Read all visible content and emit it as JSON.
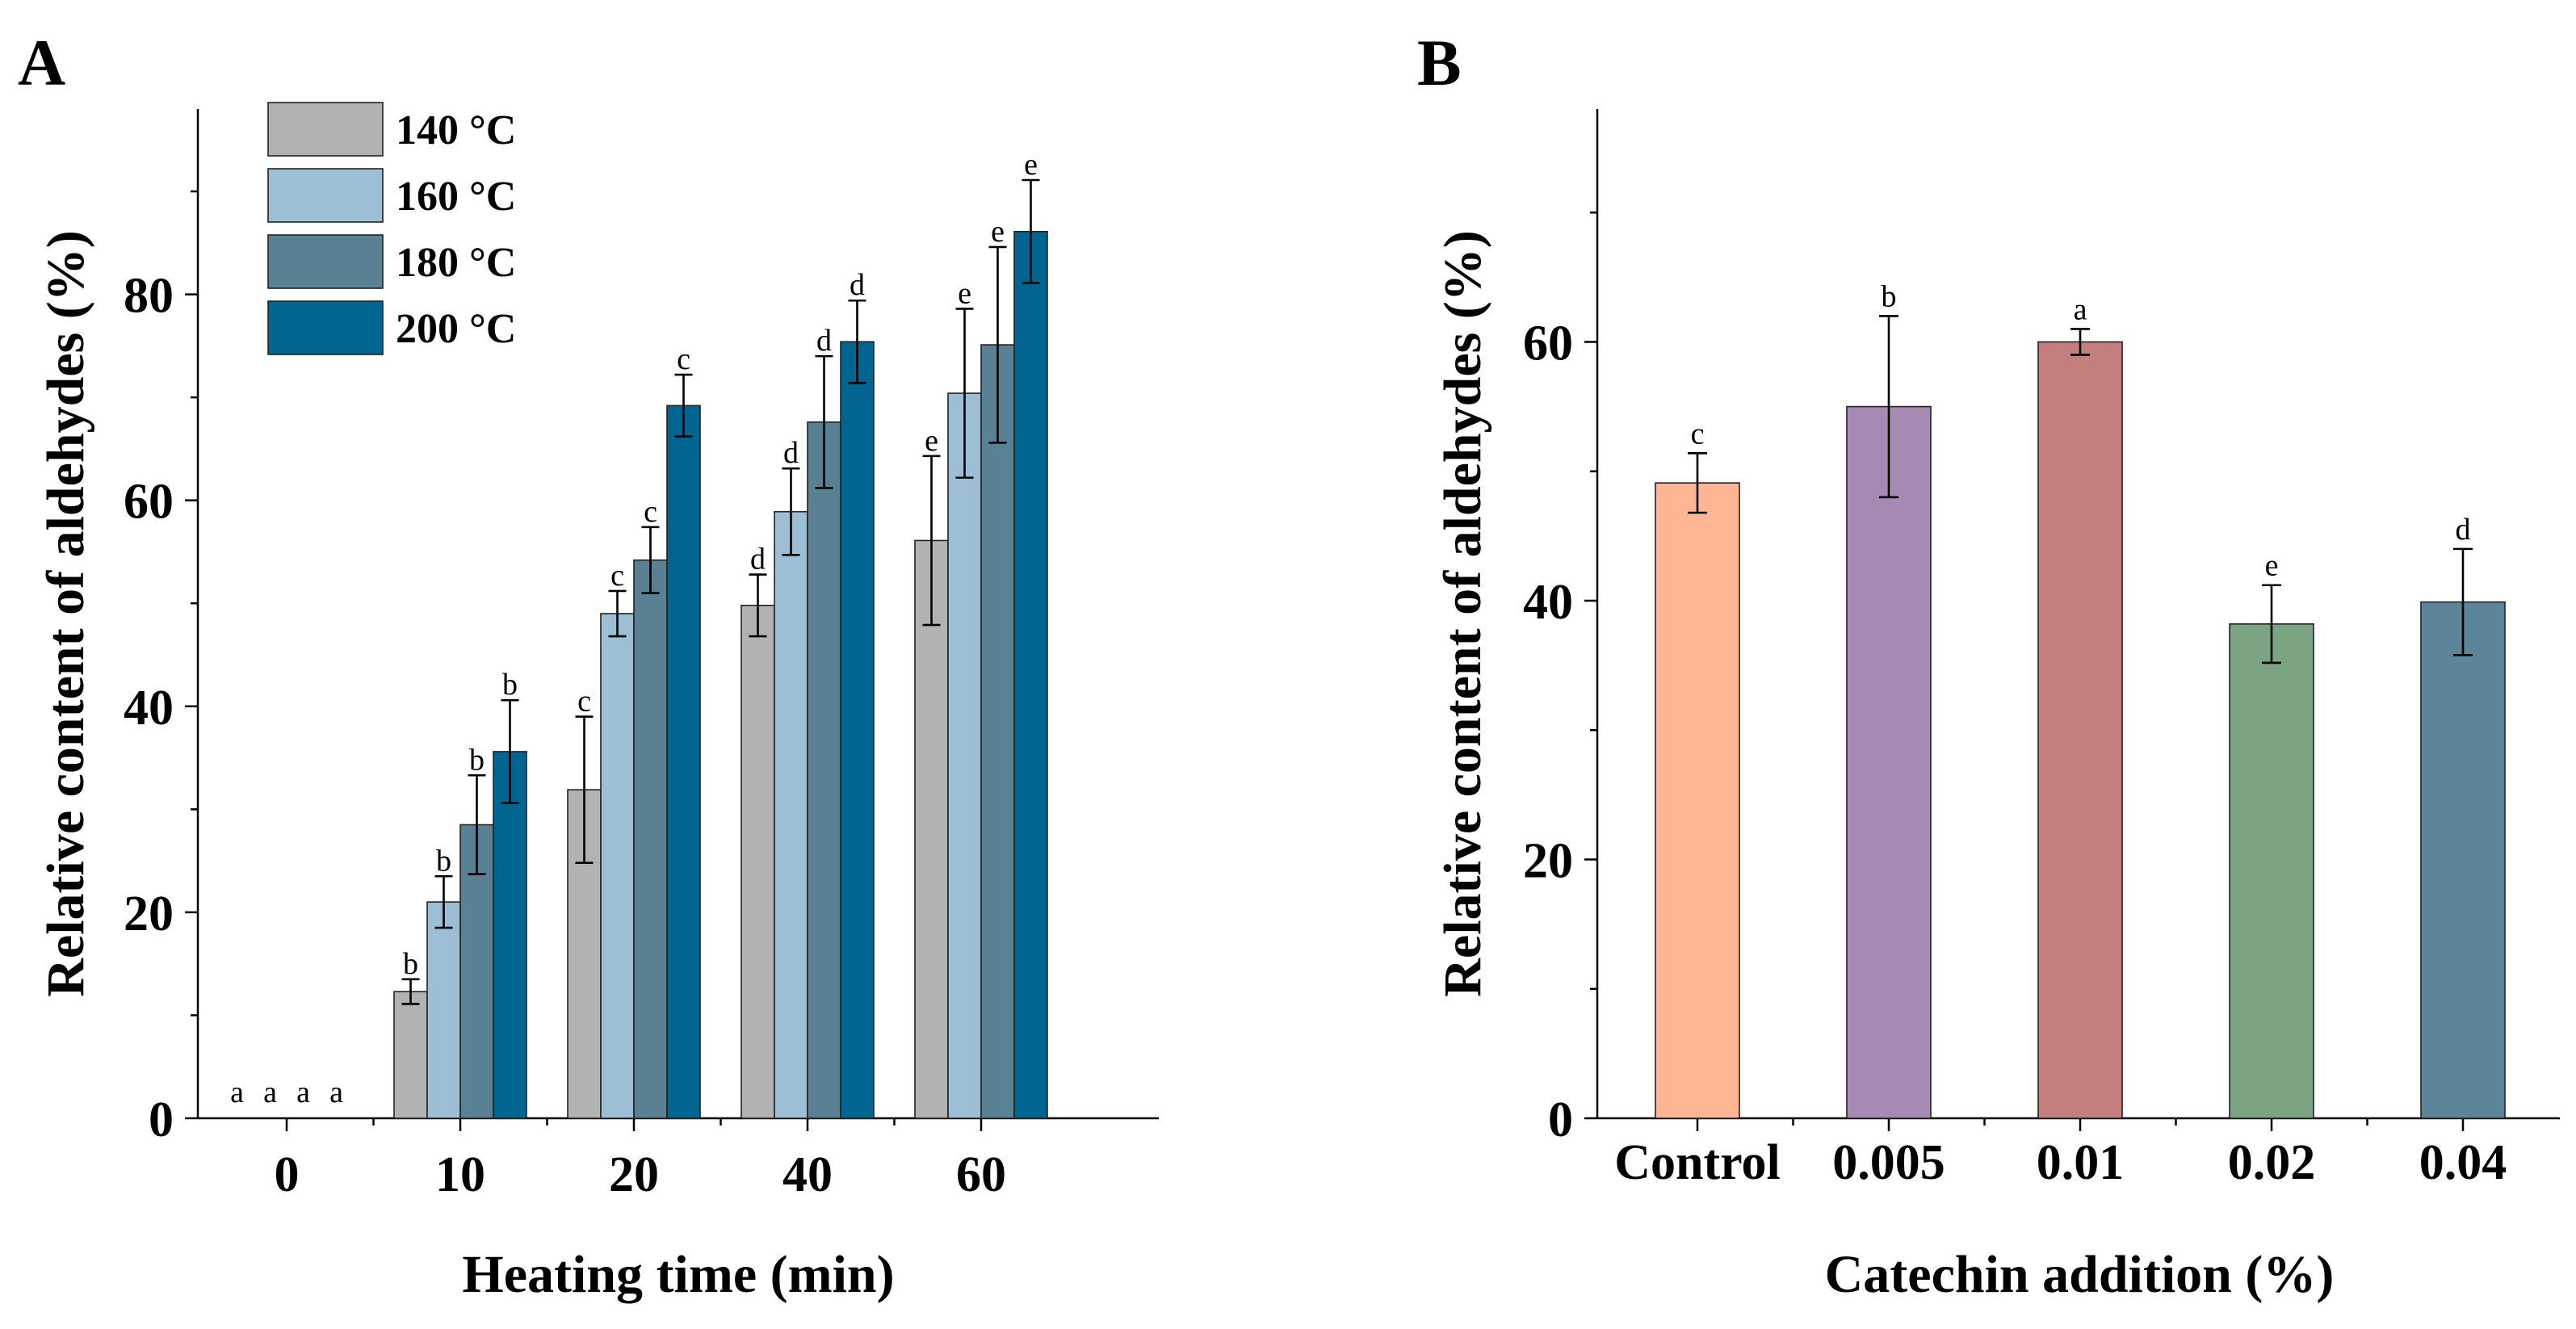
{
  "chart_data": [
    {
      "panel": "A",
      "type": "bar",
      "xlabel": "Heating time (min)",
      "ylabel": "Relative content of aldehydes (%)",
      "categories": [
        "0",
        "10",
        "20",
        "40",
        "60"
      ],
      "ylim": [
        0,
        98
      ],
      "yticks": [
        0,
        20,
        40,
        60,
        80
      ],
      "legend_position": "top-left",
      "series": [
        {
          "name": "140 °C",
          "color": "#b2b2b2",
          "values": [
            0,
            12.3,
            31.9,
            49.8,
            56.1
          ],
          "errors": [
            0,
            1.2,
            7.1,
            3.0,
            8.2
          ],
          "letters": [
            "a",
            "b",
            "c",
            "d",
            "e"
          ]
        },
        {
          "name": "160 °C",
          "color": "#9dbfd6",
          "values": [
            0,
            21.0,
            49.0,
            58.9,
            70.4
          ],
          "errors": [
            0,
            2.5,
            2.2,
            4.2,
            8.2
          ],
          "letters": [
            "a",
            "b",
            "c",
            "d",
            "e"
          ]
        },
        {
          "name": "180 °C",
          "color": "#5a8094",
          "values": [
            0,
            28.5,
            54.2,
            67.6,
            75.1
          ],
          "errors": [
            0,
            4.8,
            3.2,
            6.4,
            9.5
          ],
          "letters": [
            "a",
            "b",
            "c",
            "d",
            "e"
          ]
        },
        {
          "name": "200 °C",
          "color": "#006691",
          "values": [
            0,
            35.6,
            69.2,
            75.4,
            86.1
          ],
          "errors": [
            0,
            5.0,
            3.0,
            4.0,
            5.0
          ],
          "letters": [
            "a",
            "b",
            "c",
            "d",
            "e"
          ]
        }
      ]
    },
    {
      "panel": "B",
      "type": "bar",
      "xlabel": "Catechin addition (%)",
      "ylabel": "Relative content of aldehydes (%)",
      "categories": [
        "Control",
        "0.005",
        "0.01",
        "0.02",
        "0.04"
      ],
      "ylim": [
        0,
        78
      ],
      "yticks": [
        0,
        20,
        40,
        60
      ],
      "values": [
        49.1,
        55.0,
        60.0,
        38.2,
        39.9
      ],
      "errors": [
        2.3,
        7.0,
        1.0,
        3.0,
        4.1
      ],
      "letters": [
        "c",
        "b",
        "a",
        "e",
        "d"
      ],
      "colors": [
        "#fdb594",
        "#a68ab3",
        "#c47e7d",
        "#7aa482",
        "#5d8599"
      ]
    }
  ]
}
